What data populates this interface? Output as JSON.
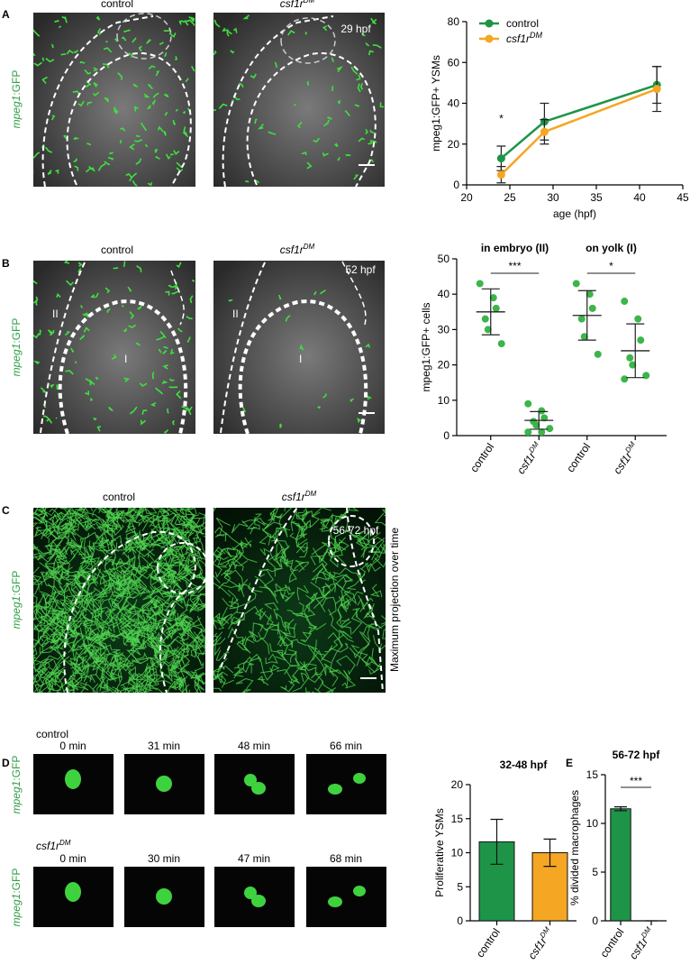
{
  "panel_letters": [
    "A",
    "B",
    "C",
    "D",
    "E"
  ],
  "genotypes": [
    {
      "text": "control"
    },
    {
      "text": "csf1r",
      "sup": "DM"
    }
  ],
  "marker_label": [
    "mpeg1",
    ":GFP"
  ],
  "stages": [
    "29 hpf",
    "52 hpf",
    "56-72 hpf"
  ],
  "region_labels": [
    "II",
    "I"
  ],
  "c_side_label": "Maximum projection over time",
  "timelapse": {
    "control": [
      "0 min",
      "31 min",
      "48 min",
      "66 min"
    ],
    "mutant": [
      "0 min",
      "30 min",
      "47 min",
      "68 min"
    ]
  },
  "chart_data": [
    {
      "type": "line",
      "xlabel": "age (hpf)",
      "ylabel": "mpeg1:GFP+ YSMs",
      "xlim": [
        20,
        45
      ],
      "xticks": [
        20,
        25,
        30,
        35,
        40,
        45
      ],
      "ylim": [
        0,
        80
      ],
      "yticks": [
        0,
        20,
        40,
        60,
        80
      ],
      "x": [
        24,
        29,
        42
      ],
      "series": [
        {
          "name": "control",
          "color": "#1e9448",
          "values": [
            13,
            31,
            49
          ],
          "errors": [
            6,
            9,
            9
          ]
        },
        {
          "name": "csf1r",
          "name_sup": "DM",
          "color": "#f5a623",
          "values": [
            5,
            26,
            47
          ],
          "errors": [
            4,
            6,
            11
          ]
        }
      ],
      "annotations": [
        "*"
      ],
      "legend": "upper left"
    },
    {
      "type": "strip",
      "groups": [
        "in embryo (II)",
        "on yolk (I)"
      ],
      "categories": [
        {
          "text": "control"
        },
        {
          "text": "csf1r",
          "sup": "DM"
        },
        {
          "text": "control"
        },
        {
          "text": "csf1r",
          "sup": "DM"
        }
      ],
      "ylabel": "mpeg1:GFP+ cells",
      "ylim": [
        0,
        50
      ],
      "yticks": [
        0,
        10,
        20,
        30,
        40,
        50
      ],
      "color": "#3cb54a",
      "points": [
        [
          43,
          39,
          36,
          33,
          30,
          26
        ],
        [
          9,
          7,
          5,
          4,
          3,
          2,
          1,
          1
        ],
        [
          43,
          40,
          36,
          33,
          28,
          23
        ],
        [
          38,
          33,
          27,
          22,
          20,
          17,
          16
        ]
      ],
      "means": [
        35,
        4.3,
        34,
        24
      ],
      "sds": [
        6.5,
        2.5,
        7,
        7.6
      ],
      "significance": [
        "***",
        "*"
      ]
    },
    {
      "type": "bar",
      "title": "32-48 hpf",
      "ylabel": "Proliferative YSMs",
      "categories": [
        {
          "text": "control"
        },
        {
          "text": "csf1r",
          "sup": "DM"
        }
      ],
      "values": [
        11.6,
        10
      ],
      "errors": [
        3.3,
        2
      ],
      "colors": [
        "#1e9448",
        "#f5a623"
      ],
      "ylim": [
        0,
        20
      ],
      "yticks": [
        0,
        5,
        10,
        15,
        20
      ]
    },
    {
      "type": "bar",
      "title": "56-72 hpf",
      "ylabel": "% divided macrophages",
      "categories": [
        {
          "text": "control"
        },
        {
          "text": "csf1r",
          "sup": "DM"
        }
      ],
      "values": [
        11.5,
        0
      ],
      "errors": [
        0.2,
        0
      ],
      "colors": [
        "#1e9448",
        "#1e9448"
      ],
      "ylim": [
        0,
        15
      ],
      "yticks": [
        0,
        5,
        10,
        15
      ],
      "significance": [
        "***"
      ]
    }
  ]
}
